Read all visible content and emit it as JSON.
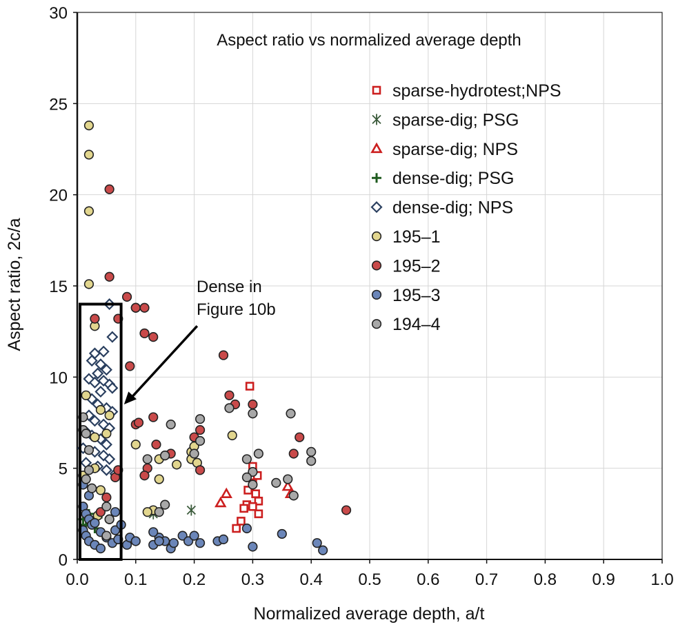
{
  "chart_data": {
    "type": "scatter",
    "title": "Aspect ratio vs normalized average depth",
    "xlabel": "Normalized average depth, a/t",
    "ylabel": "Aspect ratio, 2c/a",
    "xlim": [
      0,
      1
    ],
    "ylim": [
      0,
      30
    ],
    "x_ticks": [
      0,
      0.1,
      0.2,
      0.3,
      0.4,
      0.5,
      0.6,
      0.7,
      0.8,
      0.9,
      1.0
    ],
    "x_tick_labels": [
      "0.0",
      "0.1",
      "0.2",
      "0.3",
      "0.4",
      "0.5",
      "0.6",
      "0.7",
      "0.8",
      "0.9",
      "1.0"
    ],
    "y_ticks": [
      0,
      5,
      10,
      15,
      20,
      25,
      30
    ],
    "y_tick_labels": [
      "0",
      "5",
      "10",
      "15",
      "20",
      "25",
      "30"
    ],
    "grid": true,
    "legend_position": "top-right",
    "annotation": {
      "lines": [
        "Dense in",
        "Figure 10b"
      ],
      "box_x": [
        0,
        0.075
      ],
      "box_y": [
        0,
        14
      ],
      "arrow_from": [
        0.205,
        12.8
      ],
      "arrow_to": [
        0.08,
        8.5
      ]
    },
    "series": [
      {
        "name": "sparse-hydrotest;NPS",
        "marker": "square",
        "color": "#cc1f1f",
        "points": [
          [
            0.295,
            9.5
          ],
          [
            0.3,
            5.1
          ],
          [
            0.308,
            4.6
          ],
          [
            0.3,
            4.2
          ],
          [
            0.292,
            3.8
          ],
          [
            0.305,
            3.6
          ],
          [
            0.31,
            3.2
          ],
          [
            0.29,
            3.0
          ],
          [
            0.285,
            2.8
          ],
          [
            0.3,
            2.9
          ],
          [
            0.31,
            2.5
          ],
          [
            0.28,
            2.1
          ],
          [
            0.272,
            1.7
          ]
        ]
      },
      {
        "name": "sparse-dig; PSG",
        "marker": "asterisk",
        "color": "#3a5a3a",
        "points": [
          [
            0.195,
            2.7
          ],
          [
            0.13,
            2.5
          ]
        ]
      },
      {
        "name": "sparse-dig; NPS",
        "marker": "triangle",
        "color": "#cc1f1f",
        "points": [
          [
            0.255,
            3.6
          ],
          [
            0.245,
            3.1
          ],
          [
            0.36,
            4.0
          ],
          [
            0.365,
            3.6
          ]
        ]
      },
      {
        "name": "dense-dig; PSG",
        "marker": "plus",
        "color": "#1e5a1e",
        "points": [
          [
            0.01,
            2.2
          ],
          [
            0.015,
            1.9
          ],
          [
            0.025,
            2.1
          ],
          [
            0.03,
            1.7
          ],
          [
            0.035,
            2.3
          ],
          [
            0.02,
            2.5
          ]
        ]
      },
      {
        "name": "dense-dig; NPS",
        "marker": "diamond",
        "color": "#2a3f5f",
        "points": [
          [
            0.055,
            14.0
          ],
          [
            0.06,
            12.2
          ],
          [
            0.045,
            11.4
          ],
          [
            0.03,
            11.3
          ],
          [
            0.025,
            10.9
          ],
          [
            0.04,
            10.7
          ],
          [
            0.05,
            10.4
          ],
          [
            0.035,
            10.2
          ],
          [
            0.02,
            9.9
          ],
          [
            0.03,
            9.7
          ],
          [
            0.045,
            9.8
          ],
          [
            0.055,
            9.6
          ],
          [
            0.06,
            9.4
          ],
          [
            0.04,
            9.2
          ],
          [
            0.025,
            8.8
          ],
          [
            0.035,
            8.5
          ],
          [
            0.05,
            8.3
          ],
          [
            0.06,
            8.1
          ],
          [
            0.02,
            7.9
          ],
          [
            0.03,
            7.6
          ],
          [
            0.045,
            7.4
          ],
          [
            0.055,
            7.2
          ],
          [
            0.015,
            7.0
          ],
          [
            0.025,
            6.8
          ],
          [
            0.04,
            6.6
          ],
          [
            0.05,
            6.3
          ],
          [
            0.01,
            6.1
          ],
          [
            0.03,
            5.9
          ],
          [
            0.045,
            5.7
          ],
          [
            0.055,
            5.5
          ],
          [
            0.015,
            5.3
          ],
          [
            0.035,
            5.1
          ],
          [
            0.05,
            4.9
          ],
          [
            0.065,
            4.7
          ]
        ]
      },
      {
        "name": "195–1",
        "marker": "circle",
        "color": "#e2d68e",
        "points": [
          [
            0.02,
            23.8
          ],
          [
            0.02,
            22.2
          ],
          [
            0.02,
            19.1
          ],
          [
            0.02,
            15.1
          ],
          [
            0.03,
            12.8
          ],
          [
            0.1,
            13.8
          ],
          [
            0.055,
            7.9
          ],
          [
            0.05,
            6.9
          ],
          [
            0.03,
            6.7
          ],
          [
            0.03,
            5.0
          ],
          [
            0.01,
            4.6
          ],
          [
            0.04,
            3.8
          ],
          [
            0.035,
            2.4
          ],
          [
            0.1,
            6.3
          ],
          [
            0.14,
            5.5
          ],
          [
            0.15,
            5.7
          ],
          [
            0.14,
            4.4
          ],
          [
            0.17,
            5.2
          ],
          [
            0.195,
            5.9
          ],
          [
            0.2,
            6.2
          ],
          [
            0.195,
            5.5
          ],
          [
            0.205,
            5.3
          ],
          [
            0.265,
            6.8
          ],
          [
            0.13,
            2.7
          ],
          [
            0.12,
            2.6
          ],
          [
            0.015,
            9.0
          ],
          [
            0.04,
            8.2
          ]
        ]
      },
      {
        "name": "195–2",
        "marker": "circle",
        "color": "#c94a4a",
        "points": [
          [
            0.055,
            20.3
          ],
          [
            0.055,
            15.5
          ],
          [
            0.085,
            14.4
          ],
          [
            0.1,
            13.8
          ],
          [
            0.115,
            13.8
          ],
          [
            0.03,
            13.2
          ],
          [
            0.07,
            13.2
          ],
          [
            0.115,
            12.4
          ],
          [
            0.13,
            12.2
          ],
          [
            0.09,
            10.6
          ],
          [
            0.25,
            11.2
          ],
          [
            0.1,
            7.4
          ],
          [
            0.105,
            7.5
          ],
          [
            0.13,
            7.8
          ],
          [
            0.21,
            7.1
          ],
          [
            0.12,
            5.0
          ],
          [
            0.115,
            4.6
          ],
          [
            0.135,
            6.3
          ],
          [
            0.16,
            5.8
          ],
          [
            0.2,
            6.7
          ],
          [
            0.21,
            4.9
          ],
          [
            0.26,
            9.0
          ],
          [
            0.27,
            8.5
          ],
          [
            0.3,
            8.5
          ],
          [
            0.38,
            6.7
          ],
          [
            0.37,
            5.8
          ],
          [
            0.46,
            2.7
          ],
          [
            0.065,
            4.5
          ],
          [
            0.05,
            3.4
          ],
          [
            0.04,
            2.6
          ],
          [
            0.055,
            2.2
          ],
          [
            0.07,
            4.9
          ]
        ]
      },
      {
        "name": "195–3",
        "marker": "circle",
        "color": "#6b86b9",
        "points": [
          [
            0.01,
            2.9
          ],
          [
            0.015,
            2.5
          ],
          [
            0.02,
            2.2
          ],
          [
            0.025,
            1.9
          ],
          [
            0.01,
            1.6
          ],
          [
            0.015,
            1.3
          ],
          [
            0.02,
            1.0
          ],
          [
            0.03,
            0.8
          ],
          [
            0.04,
            1.5
          ],
          [
            0.05,
            1.2
          ],
          [
            0.06,
            0.9
          ],
          [
            0.065,
            1.6
          ],
          [
            0.07,
            1.1
          ],
          [
            0.085,
            0.8
          ],
          [
            0.09,
            1.2
          ],
          [
            0.1,
            1.0
          ],
          [
            0.13,
            0.8
          ],
          [
            0.14,
            1.2
          ],
          [
            0.15,
            1.0
          ],
          [
            0.16,
            0.6
          ],
          [
            0.18,
            1.3
          ],
          [
            0.19,
            1.0
          ],
          [
            0.2,
            1.3
          ],
          [
            0.21,
            0.9
          ],
          [
            0.24,
            1.0
          ],
          [
            0.25,
            1.1
          ],
          [
            0.29,
            1.7
          ],
          [
            0.3,
            0.7
          ],
          [
            0.35,
            1.4
          ],
          [
            0.41,
            0.9
          ],
          [
            0.42,
            0.5
          ],
          [
            0.01,
            4.1
          ],
          [
            0.02,
            3.5
          ],
          [
            0.03,
            2.0
          ],
          [
            0.13,
            1.5
          ],
          [
            0.14,
            1.0
          ],
          [
            0.04,
            0.6
          ],
          [
            0.165,
            0.9
          ],
          [
            0.075,
            1.9
          ],
          [
            0.065,
            2.6
          ]
        ]
      },
      {
        "name": "194–4",
        "marker": "circle",
        "color": "#a8a8a8",
        "points": [
          [
            0.01,
            7.8
          ],
          [
            0.01,
            7.1
          ],
          [
            0.015,
            6.9
          ],
          [
            0.02,
            6.0
          ],
          [
            0.02,
            4.9
          ],
          [
            0.015,
            4.4
          ],
          [
            0.025,
            3.9
          ],
          [
            0.05,
            2.9
          ],
          [
            0.055,
            2.2
          ],
          [
            0.05,
            1.3
          ],
          [
            0.16,
            7.4
          ],
          [
            0.21,
            7.7
          ],
          [
            0.21,
            6.5
          ],
          [
            0.2,
            5.8
          ],
          [
            0.15,
            5.7
          ],
          [
            0.15,
            3.0
          ],
          [
            0.14,
            2.6
          ],
          [
            0.12,
            5.5
          ],
          [
            0.26,
            8.3
          ],
          [
            0.3,
            8.0
          ],
          [
            0.365,
            8.0
          ],
          [
            0.29,
            5.5
          ],
          [
            0.3,
            4.8
          ],
          [
            0.31,
            5.8
          ],
          [
            0.29,
            4.5
          ],
          [
            0.34,
            4.2
          ],
          [
            0.36,
            4.4
          ],
          [
            0.37,
            3.5
          ],
          [
            0.4,
            5.9
          ],
          [
            0.4,
            5.4
          ],
          [
            0.3,
            4.1
          ]
        ]
      }
    ]
  }
}
